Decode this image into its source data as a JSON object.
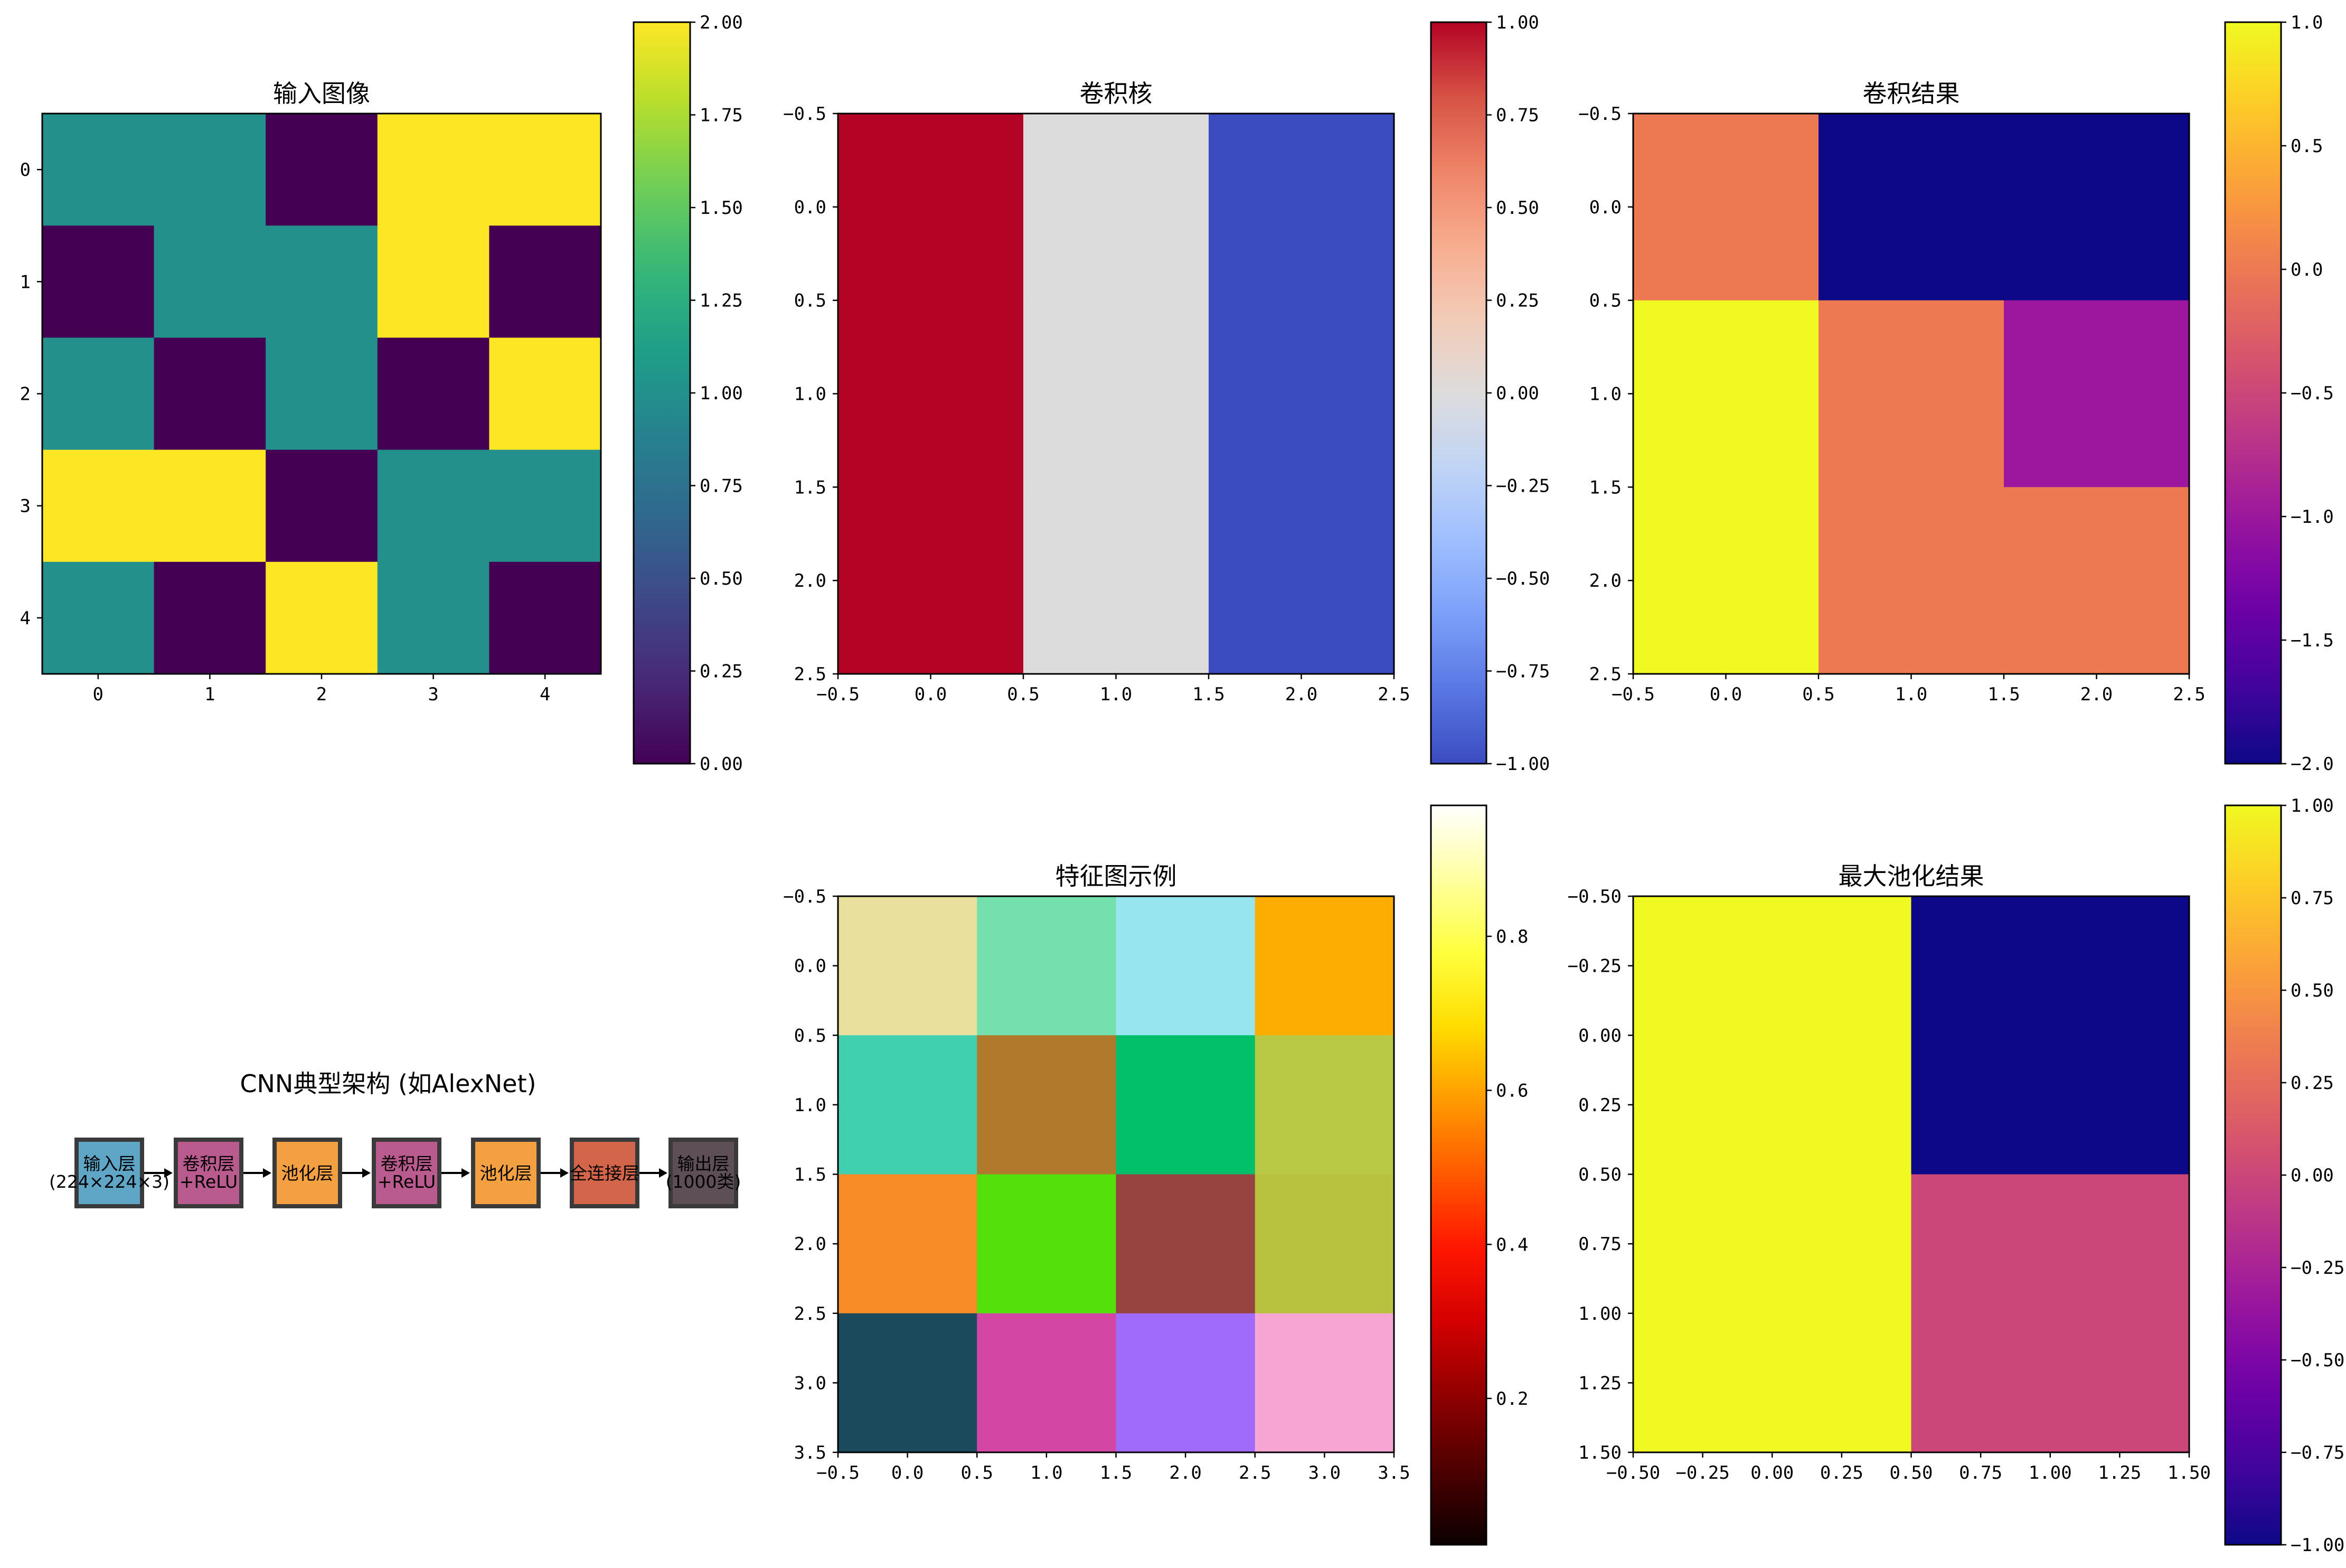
{
  "chart_data": [
    {
      "id": "input",
      "type": "heatmap",
      "title": "输入图像",
      "colormap": "viridis",
      "values": [
        [
          1,
          1,
          0,
          2,
          2
        ],
        [
          0,
          1,
          1,
          2,
          0
        ],
        [
          1,
          0,
          1,
          0,
          2
        ],
        [
          2,
          2,
          0,
          1,
          1
        ],
        [
          1,
          0,
          2,
          1,
          0
        ]
      ],
      "vlim": [
        0,
        2
      ],
      "x_ticks": [
        0,
        1,
        2,
        3,
        4
      ],
      "x_tick_labels": [
        "0",
        "1",
        "2",
        "3",
        "4"
      ],
      "y_ticks": [
        0,
        1,
        2,
        3,
        4
      ],
      "y_tick_labels": [
        "0",
        "1",
        "2",
        "3",
        "4"
      ],
      "colorbar_ticks": [
        0,
        0.25,
        0.5,
        0.75,
        1,
        1.25,
        1.5,
        1.75,
        2
      ],
      "colorbar_labels": [
        "0.00",
        "0.25",
        "0.50",
        "0.75",
        "1.00",
        "1.25",
        "1.50",
        "1.75",
        "2.00"
      ]
    },
    {
      "id": "kernel",
      "type": "heatmap",
      "title": "卷积核",
      "colormap": "coolwarm",
      "values": [
        [
          1,
          0,
          -1
        ],
        [
          1,
          0,
          -1
        ],
        [
          1,
          0,
          -1
        ]
      ],
      "vlim": [
        -1,
        1
      ],
      "xlim": [
        -0.5,
        2.5
      ],
      "ylim": [
        -0.5,
        2.5
      ],
      "x_ticks": [
        -0.5,
        0,
        0.5,
        1,
        1.5,
        2,
        2.5
      ],
      "x_tick_labels": [
        "−0.5",
        "0.0",
        "0.5",
        "1.0",
        "1.5",
        "2.0",
        "2.5"
      ],
      "y_ticks": [
        -0.5,
        0,
        0.5,
        1,
        1.5,
        2,
        2.5
      ],
      "y_tick_labels": [
        "−0.5",
        "0.0",
        "0.5",
        "1.0",
        "1.5",
        "2.0",
        "2.5"
      ],
      "colorbar_ticks": [
        -1,
        -0.75,
        -0.5,
        -0.25,
        0,
        0.25,
        0.5,
        0.75,
        1
      ],
      "colorbar_labels": [
        "−1.00",
        "−0.75",
        "−0.50",
        "−0.25",
        "0.00",
        "0.25",
        "0.50",
        "0.75",
        "1.00"
      ]
    },
    {
      "id": "conv",
      "type": "heatmap",
      "title": "卷积结果",
      "colormap": "plasma",
      "values": [
        [
          0,
          -2,
          -2
        ],
        [
          1,
          0,
          -1
        ],
        [
          1,
          0,
          0
        ]
      ],
      "vlim": [
        -2,
        1
      ],
      "xlim": [
        -0.5,
        2.5
      ],
      "ylim": [
        -0.5,
        2.5
      ],
      "x_ticks": [
        -0.5,
        0,
        0.5,
        1,
        1.5,
        2,
        2.5
      ],
      "x_tick_labels": [
        "−0.5",
        "0.0",
        "0.5",
        "1.0",
        "1.5",
        "2.0",
        "2.5"
      ],
      "y_ticks": [
        -0.5,
        0,
        0.5,
        1,
        1.5,
        2,
        2.5
      ],
      "y_tick_labels": [
        "−0.5",
        "0.0",
        "0.5",
        "1.0",
        "1.5",
        "2.0",
        "2.5"
      ],
      "colorbar_ticks": [
        -2,
        -1.5,
        -1,
        -0.5,
        0,
        0.5,
        1
      ],
      "colorbar_labels": [
        "−2.0",
        "−1.5",
        "−1.0",
        "−0.5",
        "0.0",
        "0.5",
        "1.0"
      ]
    },
    {
      "id": "feature",
      "type": "heatmap",
      "title": "特征图示例",
      "colormap": "hot",
      "cell_colors": [
        [
          "#e8e09c",
          "#74e0ad",
          "#97e5ee",
          "#fdad02"
        ],
        [
          "#40d0b0",
          "#b0792c",
          "#02c06a",
          "#b9c946"
        ],
        [
          "#f88c27",
          "#54e00a",
          "#974440",
          "#b9c23f"
        ],
        [
          "#1a4a5c",
          "#d346a4",
          "#a06afa",
          "#f7a6d4"
        ]
      ],
      "xlim": [
        -0.5,
        3.5
      ],
      "ylim": [
        -0.5,
        3.5
      ],
      "x_ticks": [
        -0.5,
        0,
        0.5,
        1,
        1.5,
        2,
        2.5,
        3,
        3.5
      ],
      "x_tick_labels": [
        "−0.5",
        "0.0",
        "0.5",
        "1.0",
        "1.5",
        "2.0",
        "2.5",
        "3.0",
        "3.5"
      ],
      "y_ticks": [
        -0.5,
        0,
        0.5,
        1,
        1.5,
        2,
        2.5,
        3,
        3.5
      ],
      "y_tick_labels": [
        "−0.5",
        "0.0",
        "0.5",
        "1.0",
        "1.5",
        "2.0",
        "2.5",
        "3.0",
        "3.5"
      ],
      "vlim": [
        0.01,
        0.97
      ],
      "colorbar_ticks": [
        0.2,
        0.4,
        0.6,
        0.8
      ],
      "colorbar_labels": [
        "0.2",
        "0.4",
        "0.6",
        "0.8"
      ]
    },
    {
      "id": "pool",
      "type": "heatmap",
      "title": "最大池化结果",
      "colormap": "plasma",
      "values": [
        [
          1,
          -1
        ],
        [
          1,
          0
        ]
      ],
      "vlim": [
        -1,
        1
      ],
      "xlim": [
        -0.5,
        1.5
      ],
      "ylim": [
        -0.5,
        1.5
      ],
      "x_ticks": [
        -0.5,
        -0.25,
        0,
        0.25,
        0.5,
        0.75,
        1,
        1.25,
        1.5
      ],
      "x_tick_labels": [
        "−0.50",
        "−0.25",
        "0.00",
        "0.25",
        "0.50",
        "0.75",
        "1.00",
        "1.25",
        "1.50"
      ],
      "y_ticks": [
        -0.5,
        -0.25,
        0,
        0.25,
        0.5,
        0.75,
        1,
        1.25,
        1.5
      ],
      "y_tick_labels": [
        "−0.50",
        "−0.25",
        "0.00",
        "0.25",
        "0.50",
        "0.75",
        "1.00",
        "1.25",
        "1.50"
      ],
      "colorbar_ticks": [
        -1,
        -0.75,
        -0.5,
        -0.25,
        0,
        0.25,
        0.5,
        0.75,
        1
      ],
      "colorbar_labels": [
        "−1.00",
        "−0.75",
        "−0.50",
        "−0.25",
        "0.00",
        "0.25",
        "0.50",
        "0.75",
        "1.00"
      ]
    }
  ],
  "architecture": {
    "title": "CNN典型架构 (如AlexNet)",
    "layers": [
      {
        "lines": [
          "输入层",
          "(224×224×3)"
        ],
        "color": "#5fa6c6"
      },
      {
        "lines": [
          "卷积层",
          "+ReLU"
        ],
        "color": "#b95b8e"
      },
      {
        "lines": [
          "池化层"
        ],
        "color": "#f3a043"
      },
      {
        "lines": [
          "卷积层",
          "+ReLU"
        ],
        "color": "#b95b8e"
      },
      {
        "lines": [
          "池化层"
        ],
        "color": "#f3a043"
      },
      {
        "lines": [
          "全连接层"
        ],
        "color": "#d3654a"
      },
      {
        "lines": [
          "输出层",
          "(1000类)"
        ],
        "color": "#5e4e56"
      }
    ]
  }
}
